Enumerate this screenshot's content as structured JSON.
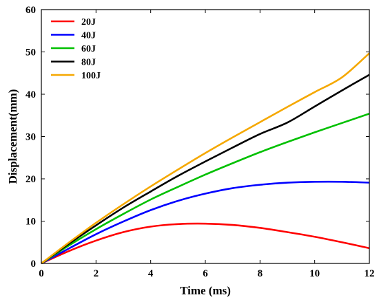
{
  "chart_data": {
    "type": "line",
    "title": "",
    "xlabel": "Time (ms)",
    "ylabel": "Displacement(mm)",
    "xlim": [
      0,
      12
    ],
    "ylim": [
      0,
      60
    ],
    "xticks": [
      "0",
      "2",
      "4",
      "6",
      "8",
      "10",
      "12"
    ],
    "yticks": [
      "0",
      "10",
      "20",
      "30",
      "40",
      "50",
      "60"
    ],
    "grid": false,
    "legend": "top-left",
    "x": [
      0,
      1,
      2,
      3,
      4,
      5,
      6,
      7,
      8,
      9,
      10,
      11,
      12
    ],
    "series": [
      {
        "name": "20J",
        "color": "#ff0000",
        "values": [
          0,
          2.9,
          5.4,
          7.4,
          8.7,
          9.3,
          9.4,
          9.1,
          8.4,
          7.4,
          6.3,
          5.0,
          3.6
        ]
      },
      {
        "name": "40J",
        "color": "#0000ff",
        "values": [
          0,
          3.5,
          6.9,
          9.9,
          12.6,
          14.8,
          16.5,
          17.8,
          18.6,
          19.1,
          19.3,
          19.3,
          19.1
        ]
      },
      {
        "name": "60J",
        "color": "#00c000",
        "values": [
          0,
          4.2,
          8.1,
          11.7,
          15.1,
          18.1,
          21.0,
          23.7,
          26.3,
          28.7,
          31.0,
          33.2,
          35.4
        ]
      },
      {
        "name": "80J",
        "color": "#000000",
        "values": [
          0,
          4.6,
          9.0,
          13.2,
          17.0,
          20.7,
          24.1,
          27.4,
          30.6,
          33.3,
          37.1,
          40.9,
          44.6
        ]
      },
      {
        "name": "100J",
        "color": "#f5a800",
        "values": [
          0,
          4.9,
          9.6,
          14.0,
          18.2,
          22.2,
          26.1,
          29.8,
          33.4,
          37.0,
          40.5,
          44.0,
          49.7
        ]
      }
    ]
  }
}
